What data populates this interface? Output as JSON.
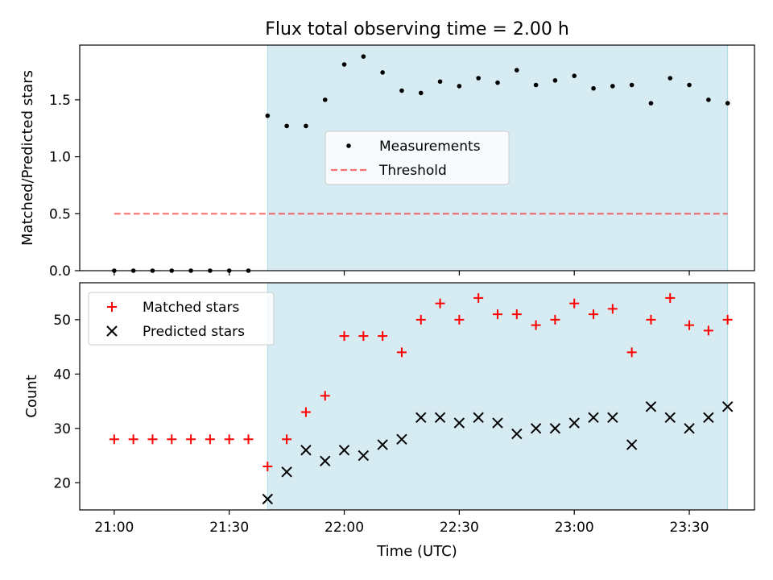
{
  "title": "Flux total observing time = 2.00 h",
  "xlabel": "Time (UTC)",
  "x_ticks": [
    "21:00",
    "21:30",
    "22:00",
    "22:30",
    "23:00",
    "23:30"
  ],
  "x_tick_minutes": [
    0,
    30,
    60,
    90,
    120,
    150
  ],
  "xlim_minutes": [
    -9,
    167
  ],
  "shaded_span_minutes": [
    40,
    160
  ],
  "colors": {
    "shade": "#add8e6",
    "threshold": "#ff0000",
    "matched": "#ff0000",
    "predicted": "#000000",
    "measurement": "#000000"
  },
  "chart_data": [
    {
      "type": "scatter",
      "ylabel": "Matched/Predicted stars",
      "ylim": [
        0,
        1.98
      ],
      "y_ticks": [
        0.0,
        0.5,
        1.0,
        1.5
      ],
      "y_tick_labels": [
        "0.0",
        "0.5",
        "1.0",
        "1.5"
      ],
      "legend": {
        "placement": "center",
        "entries": [
          "Measurements",
          "Threshold"
        ]
      },
      "series": [
        {
          "name": "Measurements",
          "marker": "dot",
          "x": [
            0,
            5,
            10,
            15,
            20,
            25,
            30,
            35,
            40,
            45,
            50,
            55,
            60,
            65,
            70,
            75,
            80,
            85,
            90,
            95,
            100,
            105,
            110,
            115,
            120,
            125,
            130,
            135,
            140,
            145,
            150,
            155,
            160
          ],
          "y": [
            0,
            0,
            0,
            0,
            0,
            0,
            0,
            0,
            1.36,
            1.27,
            1.27,
            1.5,
            1.81,
            1.88,
            1.74,
            1.58,
            1.56,
            1.66,
            1.62,
            1.69,
            1.65,
            1.76,
            1.63,
            1.67,
            1.71,
            1.6,
            1.62,
            1.63,
            1.47,
            1.69,
            1.63,
            1.5,
            1.47
          ]
        },
        {
          "name": "Threshold",
          "style": "dashed",
          "x": [
            0,
            160
          ],
          "y": [
            0.5,
            0.5
          ]
        }
      ]
    },
    {
      "type": "scatter",
      "ylabel": "Count",
      "ylim": [
        15,
        56.8
      ],
      "y_ticks": [
        20,
        30,
        40,
        50
      ],
      "y_tick_labels": [
        "20",
        "30",
        "40",
        "50"
      ],
      "legend": {
        "placement": "upper left",
        "entries": [
          "Matched stars",
          "Predicted stars"
        ]
      },
      "series": [
        {
          "name": "Matched stars",
          "marker": "plus",
          "x": [
            0,
            5,
            10,
            15,
            20,
            25,
            30,
            35,
            40,
            45,
            50,
            55,
            60,
            65,
            70,
            75,
            80,
            85,
            90,
            95,
            100,
            105,
            110,
            115,
            120,
            125,
            130,
            135,
            140,
            145,
            150,
            155,
            160
          ],
          "y": [
            28,
            28,
            28,
            28,
            28,
            28,
            28,
            28,
            23,
            28,
            33,
            36,
            47,
            47,
            47,
            44,
            50,
            53,
            50,
            54,
            51,
            51,
            49,
            50,
            53,
            51,
            52,
            44,
            50,
            54,
            49,
            48,
            50
          ]
        },
        {
          "name": "Predicted stars",
          "marker": "x",
          "x": [
            40,
            45,
            50,
            55,
            60,
            65,
            70,
            75,
            80,
            85,
            90,
            95,
            100,
            105,
            110,
            115,
            120,
            125,
            130,
            135,
            140,
            145,
            150,
            155,
            160
          ],
          "y": [
            17,
            22,
            26,
            24,
            26,
            25,
            27,
            28,
            32,
            32,
            31,
            32,
            31,
            29,
            30,
            30,
            31,
            32,
            32,
            27,
            34,
            32,
            30,
            32,
            34
          ]
        }
      ]
    }
  ]
}
